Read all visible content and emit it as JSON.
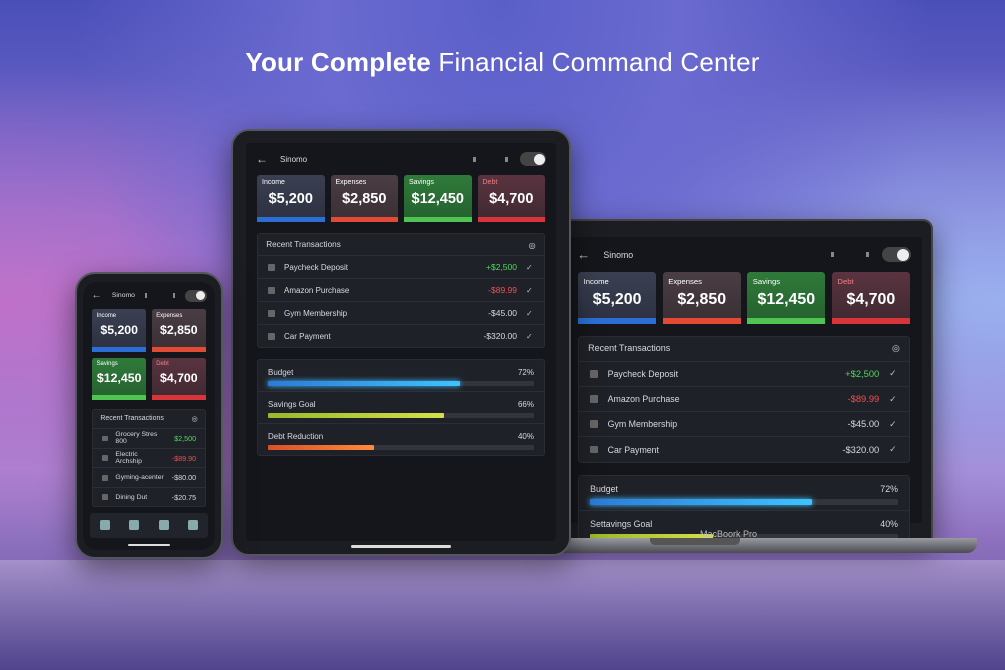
{
  "headline": {
    "bold": "Your Complete",
    "regular": "Financial Command Center"
  },
  "phone": {
    "app_name": "Sinomo",
    "cards": [
      {
        "label": "Income",
        "amount": "$5,200"
      },
      {
        "label": "Expenses",
        "amount": "$2,850"
      },
      {
        "label": "Savings",
        "amount": "$12,450"
      },
      {
        "label": "Debt",
        "amount": "$4,700"
      }
    ],
    "transactions_title": "Recent Transactions",
    "transactions": [
      {
        "name": "Grocery Stres 800",
        "amount": "$2,500"
      },
      {
        "name": "Electric Archship",
        "amount": "-$89.90"
      },
      {
        "name": "Gyming-acenter",
        "amount": "-$80.00"
      },
      {
        "name": "Dining Dut",
        "amount": "-$20.75"
      }
    ]
  },
  "tablet": {
    "app_name": "Sinomo",
    "cards": [
      {
        "label": "Income",
        "amount": "$5,200"
      },
      {
        "label": "Expenses",
        "amount": "$2,850"
      },
      {
        "label": "Savings",
        "amount": "$12,450"
      },
      {
        "label": "Debt",
        "amount": "$4,700"
      }
    ],
    "transactions_title": "Recent Transactions",
    "transactions": [
      {
        "name": "Paycheck Deposit",
        "amount": "+$2,500"
      },
      {
        "name": "Amazon Purchase",
        "amount": "-$89.99"
      },
      {
        "name": "Gym Membership",
        "amount": "-$45.00"
      },
      {
        "name": "Car Payment",
        "amount": "-$320.00"
      }
    ],
    "goals": [
      {
        "label": "Budget",
        "percent": {
          "value": 72,
          "label": "72%"
        }
      },
      {
        "label": "Savings Goal",
        "percent": {
          "value": 66,
          "label": "66%"
        }
      },
      {
        "label": "Debt Reduction",
        "percent": {
          "value": 40,
          "label": "40%"
        }
      }
    ]
  },
  "laptop": {
    "app_name": "Sinomo",
    "cards": [
      {
        "label": "Income",
        "amount": "$5,200"
      },
      {
        "label": "Expenses",
        "amount": "$2,850"
      },
      {
        "label": "Savings",
        "amount": "$12,450"
      },
      {
        "label": "Debt",
        "amount": "$4,700"
      }
    ],
    "transactions_title": "Recent Transactions",
    "transactions": [
      {
        "name": "Paycheck Deposit",
        "amount": "+$2,500"
      },
      {
        "name": "Amazon Purchase",
        "amount": "-$89.99"
      },
      {
        "name": "Gym Membership",
        "amount": "-$45.00"
      },
      {
        "name": "Car Payment",
        "amount": "-$320.00"
      }
    ],
    "goals": [
      {
        "label": "Budget",
        "percent": {
          "value": 72,
          "label": "72%"
        }
      },
      {
        "label": "Settavings Goal",
        "percent": {
          "value": 40,
          "label": "40%"
        }
      }
    ],
    "brand": "MacBoork Pro"
  }
}
